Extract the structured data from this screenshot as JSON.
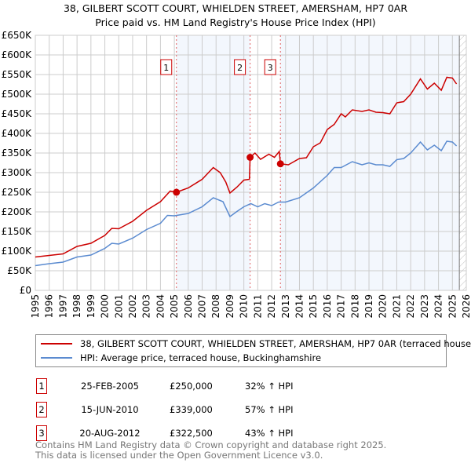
{
  "chart_data": {
    "type": "line",
    "title": "38, GILBERT SCOTT COURT, WHIELDEN STREET, AMERSHAM, HP7 0AR",
    "subtitle": "Price paid vs. HM Land Registry's House Price Index (HPI)",
    "xlim": [
      1995,
      2026
    ],
    "ylim": [
      0,
      650000
    ],
    "x_ticks": [
      "1995",
      "1996",
      "1997",
      "1998",
      "1999",
      "2000",
      "2001",
      "2002",
      "2003",
      "2004",
      "2005",
      "2006",
      "2007",
      "2008",
      "2009",
      "2010",
      "2011",
      "2012",
      "2013",
      "2014",
      "2015",
      "2016",
      "2017",
      "2018",
      "2019",
      "2020",
      "2021",
      "2022",
      "2023",
      "2024",
      "2025",
      "2026"
    ],
    "y_ticks": [
      {
        "v": 0,
        "l": "£0"
      },
      {
        "v": 50000,
        "l": "£50K"
      },
      {
        "v": 100000,
        "l": "£100K"
      },
      {
        "v": 150000,
        "l": "£150K"
      },
      {
        "v": 200000,
        "l": "£200K"
      },
      {
        "v": 250000,
        "l": "£250K"
      },
      {
        "v": 300000,
        "l": "£300K"
      },
      {
        "v": 350000,
        "l": "£350K"
      },
      {
        "v": 400000,
        "l": "£400K"
      },
      {
        "v": 450000,
        "l": "£450K"
      },
      {
        "v": 500000,
        "l": "£500K"
      },
      {
        "v": 550000,
        "l": "£550K"
      },
      {
        "v": 600000,
        "l": "£600K"
      },
      {
        "v": 650000,
        "l": "£650K"
      }
    ],
    "grid": true,
    "legend_placement": "below",
    "series": [
      {
        "name": "38, GILBERT SCOTT COURT, WHIELDEN STREET, AMERSHAM, HP7 0AR (terraced house)",
        "color": "#cc0000",
        "x": [
          1995,
          1996,
          1997,
          1998,
          1999,
          2000,
          2000.5,
          2001,
          2002,
          2003,
          2004,
          2004.7,
          2005.15,
          2006,
          2007,
          2007.8,
          2008.3,
          2008.7,
          2009,
          2009.5,
          2010,
          2010.4,
          2010.45,
          2010.8,
          2011.2,
          2011.8,
          2012.2,
          2012.55,
          2012.63,
          2013.2,
          2014,
          2014.5,
          2015,
          2015.5,
          2016,
          2016.5,
          2017,
          2017.3,
          2017.8,
          2018.5,
          2019,
          2019.5,
          2020,
          2020.5,
          2021,
          2021.5,
          2022,
          2022.7,
          2023.2,
          2023.7,
          2024.2,
          2024.6,
          2025,
          2025.3
        ],
        "y": [
          85000,
          89000,
          93000,
          112000,
          120000,
          140000,
          158000,
          157000,
          176000,
          204000,
          226000,
          253000,
          250000,
          261000,
          283000,
          313000,
          300000,
          276000,
          248000,
          263000,
          281000,
          283000,
          339000,
          350000,
          334000,
          347000,
          339000,
          354000,
          322500,
          320000,
          336000,
          338000,
          366000,
          376000,
          410000,
          423000,
          450000,
          442000,
          460000,
          456000,
          460000,
          454000,
          453000,
          450000,
          478000,
          481000,
          500000,
          539000,
          513000,
          528000,
          510000,
          543000,
          541000,
          526000
        ]
      },
      {
        "name": "HPI: Average price, terraced house, Buckinghamshire",
        "color": "#5b8bd0",
        "x": [
          1995,
          1996,
          1997,
          1998,
          1999,
          2000,
          2000.5,
          2001,
          2002,
          2003,
          2004,
          2004.5,
          2005,
          2006,
          2007,
          2007.8,
          2008.5,
          2009,
          2009.5,
          2010,
          2010.5,
          2011,
          2011.5,
          2012,
          2012.5,
          2013,
          2014,
          2015,
          2016,
          2016.5,
          2017,
          2017.8,
          2018.5,
          2019,
          2019.5,
          2020,
          2020.5,
          2021,
          2021.5,
          2022,
          2022.7,
          2023.2,
          2023.7,
          2024.2,
          2024.6,
          2025,
          2025.3
        ],
        "y": [
          63000,
          68000,
          72000,
          85000,
          90000,
          107000,
          120000,
          118000,
          133000,
          155000,
          171000,
          191000,
          190000,
          196000,
          213000,
          236000,
          226000,
          188000,
          201000,
          213000,
          221000,
          213000,
          221000,
          216000,
          225000,
          225000,
          236000,
          261000,
          293000,
          313000,
          313000,
          328000,
          320000,
          325000,
          320000,
          320000,
          316000,
          333000,
          336000,
          350000,
          378000,
          358000,
          370000,
          356000,
          380000,
          378000,
          368000
        ]
      }
    ],
    "sales": [
      {
        "n": "1",
        "x": 2005.15,
        "y": 250000,
        "date": "25-FEB-2005",
        "price": "£250,000",
        "hpi": "32% ↑ HPI"
      },
      {
        "n": "2",
        "x": 2010.45,
        "y": 339000,
        "date": "15-JUN-2010",
        "price": "£339,000",
        "hpi": "57% ↑ HPI"
      },
      {
        "n": "3",
        "x": 2012.63,
        "y": 322500,
        "date": "20-AUG-2012",
        "price": "£322,500",
        "hpi": "43% ↑ HPI"
      }
    ],
    "hatch_from": 2025.5
  },
  "footer": {
    "line1": "Contains HM Land Registry data © Crown copyright and database right 2025.",
    "line2": "This data is licensed under the Open Government Licence v3.0."
  }
}
